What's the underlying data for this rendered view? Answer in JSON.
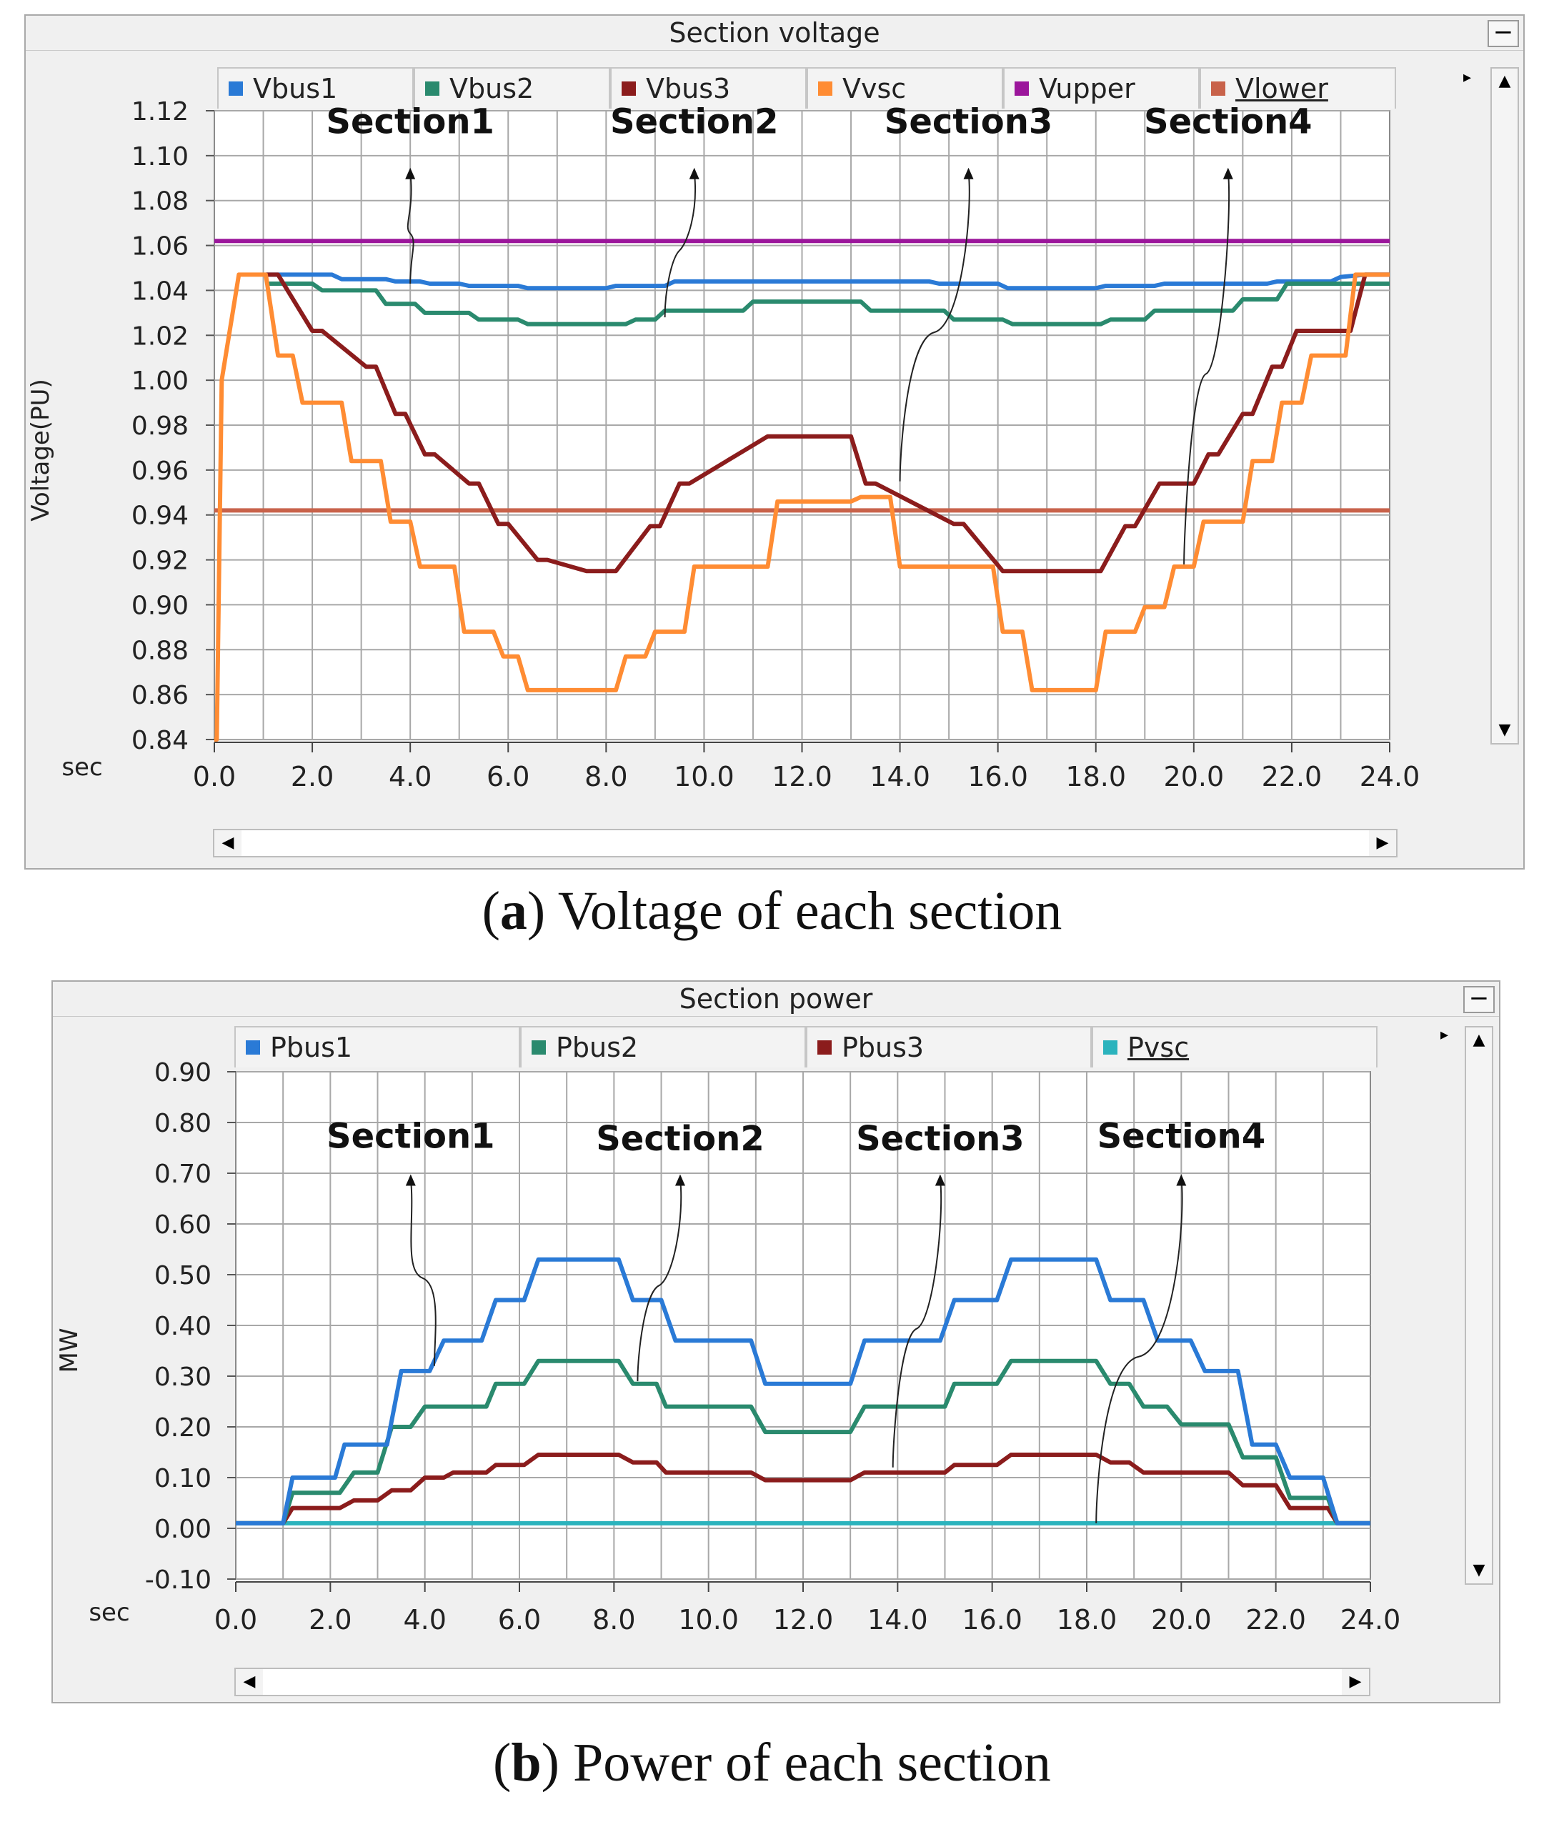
{
  "charts": [
    {
      "window_title": "Section voltage",
      "minimize_label": "−",
      "legend": [
        {
          "name": "Vbus1",
          "color": "#2a7ad6"
        },
        {
          "name": "Vbus2",
          "color": "#2a8a6e"
        },
        {
          "name": "Vbus3",
          "color": "#8b1c1c"
        },
        {
          "name": "Vvsc",
          "color": "#ff8c33"
        },
        {
          "name": "Vupper",
          "color": "#9b169b"
        },
        {
          "name": "Vlower",
          "color": "#c8624a"
        }
      ],
      "ylabel": "Voltage(PU)",
      "xunit": "sec",
      "caption_letter": "a",
      "caption_text": "Voltage of each section"
    },
    {
      "window_title": "Section power",
      "minimize_label": "−",
      "legend": [
        {
          "name": "Pbus1",
          "color": "#2a7ad6"
        },
        {
          "name": "Pbus2",
          "color": "#2a8a6e"
        },
        {
          "name": "Pbus3",
          "color": "#8b1c1c"
        },
        {
          "name": "Pvsc",
          "color": "#2bb3bd"
        }
      ],
      "ylabel": "MW",
      "xunit": "sec",
      "caption_letter": "b",
      "caption_text": "Power of each section"
    }
  ],
  "chart_data": [
    {
      "type": "line",
      "title": "Section voltage",
      "xlabel": "sec",
      "ylabel": "Voltage(PU)",
      "xlim": [
        0,
        24
      ],
      "ylim": [
        0.84,
        1.12
      ],
      "grid": true,
      "xticks": [
        "0.0",
        "2.0",
        "4.0",
        "6.0",
        "8.0",
        "10.0",
        "12.0",
        "14.0",
        "16.0",
        "18.0",
        "20.0",
        "22.0",
        "24.0"
      ],
      "yticks": [
        "0.84",
        "0.86",
        "0.88",
        "0.90",
        "0.92",
        "0.94",
        "0.96",
        "0.98",
        "1.00",
        "1.02",
        "1.04",
        "1.06",
        "1.08",
        "1.10",
        "1.12"
      ],
      "series": [
        {
          "name": "Vupper",
          "color": "#9b169b",
          "x": [
            0,
            24
          ],
          "y": [
            1.062,
            1.062
          ]
        },
        {
          "name": "Vlower",
          "color": "#c8624a",
          "x": [
            0,
            24
          ],
          "y": [
            0.942,
            0.942
          ]
        },
        {
          "name": "Vbus1",
          "color": "#2a7ad6",
          "x": [
            1.05,
            2.4,
            2.6,
            3.5,
            3.7,
            4.2,
            4.4,
            5.0,
            5.2,
            6.2,
            6.4,
            8.0,
            8.2,
            9.2,
            9.4,
            14.6,
            14.8,
            16.0,
            16.2,
            18.0,
            18.2,
            19.2,
            19.4,
            21.5,
            21.7,
            22.8,
            23.0,
            23.5,
            24
          ],
          "y": [
            1.047,
            1.047,
            1.045,
            1.045,
            1.044,
            1.044,
            1.043,
            1.043,
            1.042,
            1.042,
            1.041,
            1.041,
            1.042,
            1.042,
            1.044,
            1.044,
            1.043,
            1.043,
            1.041,
            1.041,
            1.042,
            1.042,
            1.043,
            1.043,
            1.044,
            1.044,
            1.046,
            1.047,
            1.047
          ]
        },
        {
          "name": "Vbus2",
          "color": "#2a8a6e",
          "x": [
            1.05,
            2.0,
            2.2,
            3.3,
            3.5,
            4.1,
            4.3,
            5.2,
            5.4,
            6.2,
            6.4,
            8.4,
            8.6,
            9.0,
            9.2,
            10.8,
            11.0,
            13.2,
            13.4,
            14.9,
            15.1,
            16.1,
            16.3,
            18.1,
            18.3,
            19.0,
            19.2,
            20.8,
            21.0,
            21.7,
            21.9,
            23.5,
            24
          ],
          "y": [
            1.043,
            1.043,
            1.04,
            1.04,
            1.034,
            1.034,
            1.03,
            1.03,
            1.027,
            1.027,
            1.025,
            1.025,
            1.027,
            1.027,
            1.031,
            1.031,
            1.035,
            1.035,
            1.031,
            1.031,
            1.027,
            1.027,
            1.025,
            1.025,
            1.027,
            1.027,
            1.031,
            1.031,
            1.036,
            1.036,
            1.043,
            1.043,
            1.043
          ]
        },
        {
          "name": "Vbus3",
          "color": "#8b1c1c",
          "x": [
            1.05,
            1.3,
            2.0,
            2.2,
            3.1,
            3.3,
            3.7,
            3.9,
            4.3,
            4.5,
            5.2,
            5.4,
            5.8,
            6.0,
            6.6,
            6.8,
            7.6,
            7.8,
            8.0,
            8.2,
            8.9,
            9.1,
            9.5,
            9.7,
            11.3,
            11.5,
            12.8,
            13.0,
            13.3,
            13.5,
            15.1,
            15.3,
            16.1,
            16.3,
            16.9,
            17.1,
            17.9,
            18.1,
            18.6,
            18.8,
            19.3,
            19.5,
            19.8,
            20.0,
            20.3,
            20.5,
            21.0,
            21.2,
            21.6,
            21.8,
            22.1,
            22.3,
            23.2,
            23.5,
            24
          ],
          "y": [
            1.047,
            1.047,
            1.022,
            1.022,
            1.006,
            1.006,
            0.985,
            0.985,
            0.967,
            0.967,
            0.954,
            0.954,
            0.936,
            0.936,
            0.92,
            0.92,
            0.915,
            0.915,
            0.915,
            0.915,
            0.935,
            0.935,
            0.954,
            0.954,
            0.975,
            0.975,
            0.975,
            0.975,
            0.954,
            0.954,
            0.936,
            0.936,
            0.915,
            0.915,
            0.915,
            0.915,
            0.915,
            0.915,
            0.935,
            0.935,
            0.954,
            0.954,
            0.954,
            0.954,
            0.967,
            0.967,
            0.985,
            0.985,
            1.006,
            1.006,
            1.022,
            1.022,
            1.022,
            1.047,
            1.047
          ]
        },
        {
          "name": "Vvsc",
          "color": "#ff8c33",
          "x": [
            0,
            0.05,
            0.15,
            0.5,
            0.6,
            1.05,
            1.3,
            1.6,
            1.8,
            2.6,
            2.8,
            3.4,
            3.6,
            4.0,
            4.2,
            4.9,
            5.1,
            5.7,
            5.9,
            6.2,
            6.4,
            8.2,
            8.4,
            8.8,
            9.0,
            9.6,
            9.8,
            11.3,
            11.5,
            13.0,
            13.2,
            13.8,
            14.0,
            15.0,
            15.2,
            15.9,
            16.1,
            16.5,
            16.7,
            18.0,
            18.2,
            18.8,
            19.0,
            19.4,
            19.6,
            20.0,
            20.2,
            21.0,
            21.2,
            21.6,
            21.8,
            22.2,
            22.4,
            23.1,
            23.3,
            23.5,
            24
          ],
          "y": [
            0.84,
            0.84,
            1.0,
            1.047,
            1.047,
            1.047,
            1.011,
            1.011,
            0.99,
            0.99,
            0.964,
            0.964,
            0.937,
            0.937,
            0.917,
            0.917,
            0.888,
            0.888,
            0.877,
            0.877,
            0.862,
            0.862,
            0.877,
            0.877,
            0.888,
            0.888,
            0.917,
            0.917,
            0.946,
            0.946,
            0.948,
            0.948,
            0.917,
            0.917,
            0.917,
            0.917,
            0.888,
            0.888,
            0.862,
            0.862,
            0.888,
            0.888,
            0.899,
            0.899,
            0.917,
            0.917,
            0.937,
            0.937,
            0.964,
            0.964,
            0.99,
            0.99,
            1.011,
            1.011,
            1.047,
            1.047,
            1.047
          ]
        }
      ],
      "annotations": [
        {
          "text": "Section1",
          "label_x": 4.0,
          "label_y": 1.11,
          "arrow_tip_y": 1.094,
          "line_end_x": 4.0,
          "line_end_y": 1.043
        },
        {
          "text": "Section2",
          "label_x": 9.8,
          "label_y": 1.11,
          "arrow_tip_y": 1.094,
          "line_end_x": 9.2,
          "line_end_y": 1.028
        },
        {
          "text": "Section3",
          "label_x": 15.4,
          "label_y": 1.11,
          "arrow_tip_y": 1.094,
          "line_end_x": 14.0,
          "line_end_y": 0.955
        },
        {
          "text": "Section4",
          "label_x": 20.7,
          "label_y": 1.11,
          "arrow_tip_y": 1.094,
          "line_end_x": 19.8,
          "line_end_y": 0.918
        }
      ]
    },
    {
      "type": "line",
      "title": "Section power",
      "xlabel": "sec",
      "ylabel": "MW",
      "xlim": [
        0,
        24
      ],
      "ylim": [
        -0.1,
        0.9
      ],
      "grid": true,
      "xticks": [
        "0.0",
        "2.0",
        "4.0",
        "6.0",
        "8.0",
        "10.0",
        "12.0",
        "14.0",
        "16.0",
        "18.0",
        "20.0",
        "22.0",
        "24.0"
      ],
      "yticks": [
        "-0.10",
        "0.00",
        "0.10",
        "0.20",
        "0.30",
        "0.40",
        "0.50",
        "0.60",
        "0.70",
        "0.80",
        "0.90"
      ],
      "series": [
        {
          "name": "Pvsc",
          "color": "#2bb3bd",
          "x": [
            0,
            24
          ],
          "y": [
            0.01,
            0.01
          ]
        },
        {
          "name": "Pbus3",
          "color": "#8b1c1c",
          "x": [
            0,
            1.0,
            1.2,
            1.4,
            2.2,
            2.5,
            3.0,
            3.3,
            3.7,
            4.0,
            4.4,
            4.6,
            5.3,
            5.5,
            6.1,
            6.4,
            8.1,
            8.4,
            8.9,
            9.1,
            10.9,
            11.2,
            13.0,
            13.3,
            15.0,
            15.2,
            16.1,
            16.4,
            18.2,
            18.5,
            18.9,
            19.2,
            21.0,
            21.3,
            22.0,
            22.3,
            23.1,
            23.3,
            24
          ],
          "y": [
            0.01,
            0.01,
            0.04,
            0.04,
            0.04,
            0.055,
            0.055,
            0.075,
            0.075,
            0.1,
            0.1,
            0.11,
            0.11,
            0.125,
            0.125,
            0.145,
            0.145,
            0.13,
            0.13,
            0.11,
            0.11,
            0.095,
            0.095,
            0.11,
            0.11,
            0.125,
            0.125,
            0.145,
            0.145,
            0.13,
            0.13,
            0.11,
            0.11,
            0.085,
            0.085,
            0.04,
            0.04,
            0.01,
            0.01
          ]
        },
        {
          "name": "Pbus2",
          "color": "#2a8a6e",
          "x": [
            0,
            1.0,
            1.2,
            1.4,
            2.2,
            2.5,
            3.0,
            3.3,
            3.7,
            4.0,
            4.4,
            4.6,
            5.3,
            5.5,
            6.1,
            6.4,
            8.1,
            8.4,
            8.9,
            9.1,
            10.9,
            11.2,
            13.0,
            13.3,
            15.0,
            15.2,
            16.1,
            16.4,
            18.2,
            18.5,
            18.9,
            19.2,
            19.7,
            20.0,
            21.0,
            21.3,
            22.0,
            22.3,
            23.1,
            23.3,
            24
          ],
          "y": [
            0.01,
            0.01,
            0.07,
            0.07,
            0.07,
            0.11,
            0.11,
            0.2,
            0.2,
            0.24,
            0.24,
            0.24,
            0.24,
            0.285,
            0.285,
            0.33,
            0.33,
            0.285,
            0.285,
            0.24,
            0.24,
            0.19,
            0.19,
            0.24,
            0.24,
            0.285,
            0.285,
            0.33,
            0.33,
            0.285,
            0.285,
            0.24,
            0.24,
            0.205,
            0.205,
            0.14,
            0.14,
            0.06,
            0.06,
            0.01,
            0.01
          ]
        },
        {
          "name": "Pbus1",
          "color": "#2a7ad6",
          "x": [
            0,
            1.0,
            1.2,
            1.4,
            2.1,
            2.3,
            3.2,
            3.5,
            4.1,
            4.4,
            5.2,
            5.5,
            6.1,
            6.4,
            8.1,
            8.4,
            9.0,
            9.3,
            10.9,
            11.2,
            13.0,
            13.3,
            14.9,
            15.2,
            16.1,
            16.4,
            18.2,
            18.5,
            19.2,
            19.5,
            20.2,
            20.5,
            21.2,
            21.5,
            22.0,
            22.3,
            23.0,
            23.3,
            24
          ],
          "y": [
            0.01,
            0.01,
            0.1,
            0.1,
            0.1,
            0.165,
            0.165,
            0.31,
            0.31,
            0.37,
            0.37,
            0.45,
            0.45,
            0.53,
            0.53,
            0.45,
            0.45,
            0.37,
            0.37,
            0.285,
            0.285,
            0.37,
            0.37,
            0.45,
            0.45,
            0.53,
            0.53,
            0.45,
            0.45,
            0.37,
            0.37,
            0.31,
            0.31,
            0.165,
            0.165,
            0.1,
            0.1,
            0.01,
            0.01
          ]
        }
      ],
      "annotations": [
        {
          "text": "Section1",
          "label_x": 3.7,
          "label_y": 0.75,
          "arrow_tip_y": 0.695,
          "line_end_x": 4.2,
          "line_end_y": 0.32
        },
        {
          "text": "Section2",
          "label_x": 9.4,
          "label_y": 0.745,
          "arrow_tip_y": 0.695,
          "line_end_x": 8.5,
          "line_end_y": 0.29
        },
        {
          "text": "Section3",
          "label_x": 14.9,
          "label_y": 0.745,
          "arrow_tip_y": 0.695,
          "line_end_x": 13.9,
          "line_end_y": 0.12
        },
        {
          "text": "Section4",
          "label_x": 20.0,
          "label_y": 0.75,
          "arrow_tip_y": 0.695,
          "line_end_x": 18.2,
          "line_end_y": 0.01
        }
      ]
    }
  ]
}
